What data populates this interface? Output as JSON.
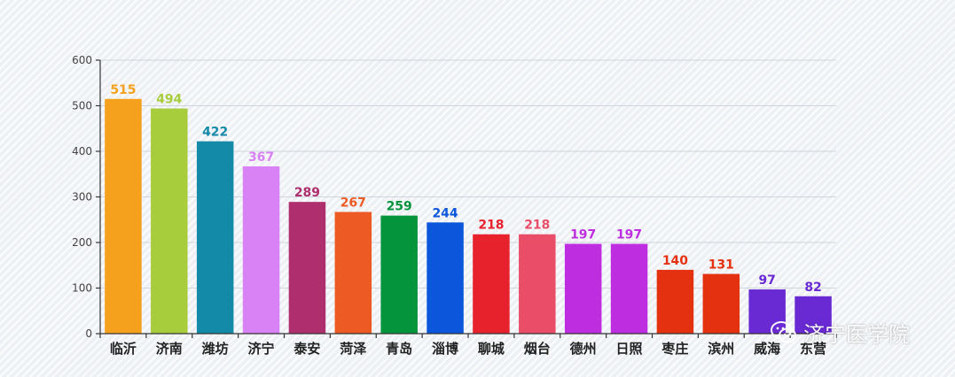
{
  "chart_data": {
    "type": "bar",
    "categories": [
      "临沂",
      "济南",
      "潍坊",
      "济宁",
      "泰安",
      "菏泽",
      "青岛",
      "淄博",
      "聊城",
      "烟台",
      "德州",
      "日照",
      "枣庄",
      "滨州",
      "威海",
      "东营"
    ],
    "values": [
      515,
      494,
      422,
      367,
      289,
      267,
      259,
      244,
      218,
      218,
      197,
      197,
      140,
      131,
      97,
      82
    ],
    "colors": [
      "#f5a11d",
      "#a7cc3c",
      "#148aa9",
      "#d882f5",
      "#af2e6e",
      "#ee5a24",
      "#04943c",
      "#0b56da",
      "#e8222c",
      "#ea4d68",
      "#be2ee0",
      "#be2ee0",
      "#e4310f",
      "#e4310f",
      "#6a2ad3",
      "#6a2ad3"
    ],
    "label_colors": [
      "#f5a11d",
      "#a7cc3c",
      "#148aa9",
      "#d882f5",
      "#af2e6e",
      "#ee5a24",
      "#04943c",
      "#0b56da",
      "#e8222c",
      "#ea4d68",
      "#be2ee0",
      "#be2ee0",
      "#e4310f",
      "#e4310f",
      "#6a2ad3",
      "#6a2ad3"
    ],
    "yticks": [
      0,
      100,
      200,
      300,
      400,
      500,
      600
    ],
    "ylim": [
      0,
      600
    ],
    "grid": true,
    "title": "",
    "xlabel": "",
    "ylabel": ""
  },
  "watermark": {
    "text": "济宁医学院",
    "icon": "wechat-icon"
  }
}
